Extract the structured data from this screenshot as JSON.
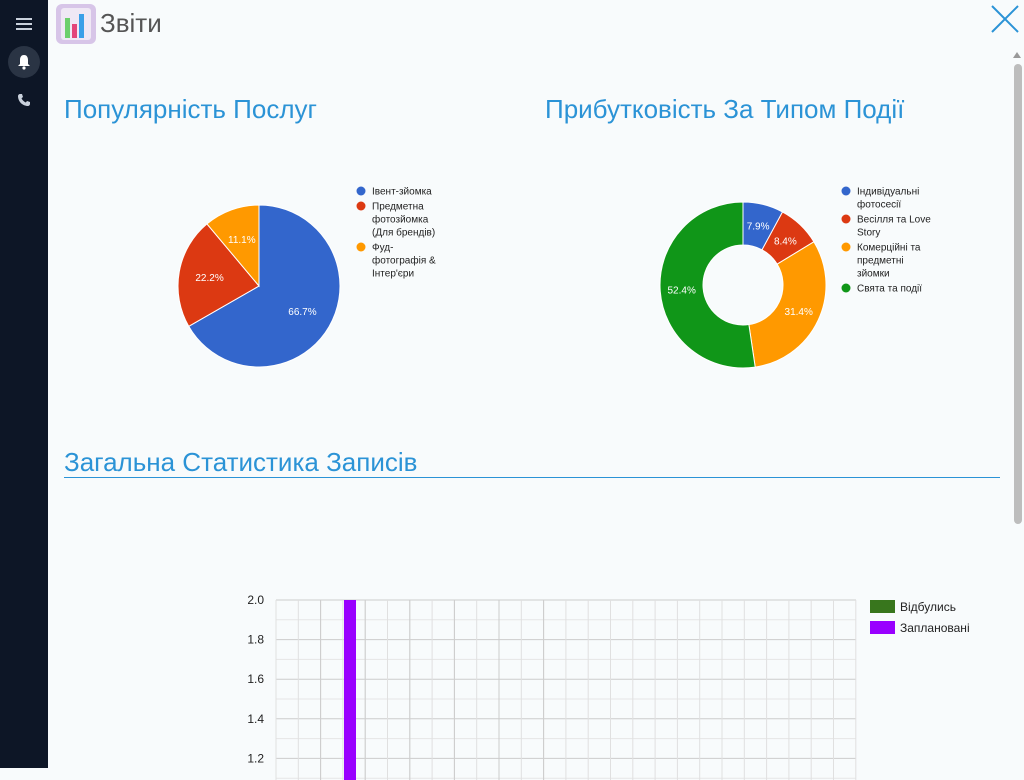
{
  "header": {
    "title": "Звіти"
  },
  "sidebar": {
    "items": [
      {
        "icon": "menu-icon"
      },
      {
        "icon": "bell-icon"
      },
      {
        "icon": "phone-icon"
      }
    ]
  },
  "sections": {
    "popularity_title": "Популярність Послуг",
    "profitability_title": "Прибутковість За Типом Події",
    "stats_title": "Загальна Статистика Записів"
  },
  "chart_data": [
    {
      "type": "pie",
      "title": "Популярність Послуг",
      "slices": [
        {
          "label": "Івент-зйомка",
          "value": 66.7,
          "color": "#3366cc",
          "display": "66.7%"
        },
        {
          "label": "Предметна фотозйомка (Для брендів)",
          "value": 22.2,
          "color": "#dc3912",
          "display": "22.2%"
        },
        {
          "label": "Фуд-фотографія & Інтер'єри",
          "value": 11.1,
          "color": "#ff9900",
          "display": "11.1%"
        }
      ],
      "legend": [
        {
          "lines": [
            "Івент-зйомка"
          ],
          "color": "#3366cc"
        },
        {
          "lines": [
            "Предметна",
            "фотозйомка",
            "(Для брендів)"
          ],
          "color": "#dc3912"
        },
        {
          "lines": [
            "Фуд-",
            "фотографія &",
            "Інтер'єри"
          ],
          "color": "#ff9900"
        }
      ],
      "legend_position": "right"
    },
    {
      "type": "pie",
      "donut": true,
      "title": "Прибутковість За Типом Події",
      "slices": [
        {
          "label": "Індивідуальні фотосесії",
          "value": 7.9,
          "color": "#3366cc",
          "display": "7.9%"
        },
        {
          "label": "Весілля та Love Story",
          "value": 8.4,
          "color": "#dc3912",
          "display": "8.4%"
        },
        {
          "label": "Комерційні та предметні зйомки",
          "value": 31.4,
          "color": "#ff9900",
          "display": "31.4%"
        },
        {
          "label": "Свята та події",
          "value": 52.4,
          "color": "#109618",
          "display": "52.4%"
        }
      ],
      "legend": [
        {
          "lines": [
            "Індивідуальні",
            "фотосесії"
          ],
          "color": "#3366cc"
        },
        {
          "lines": [
            "Весілля та Love",
            "Story"
          ],
          "color": "#dc3912"
        },
        {
          "lines": [
            "Комерційні та",
            "предметні",
            "зйомки"
          ],
          "color": "#ff9900"
        },
        {
          "lines": [
            "Свята та події"
          ],
          "color": "#109618"
        }
      ],
      "legend_position": "right"
    },
    {
      "type": "bar",
      "title": "Загальна Статистика Записів",
      "y_ticks": [
        "2.0",
        "1.8",
        "1.6",
        "1.4",
        "1.2"
      ],
      "ylim_visible": [
        1.2,
        2.0
      ],
      "series": [
        {
          "name": "Відбулись",
          "color": "#38761d",
          "values": [
            0
          ]
        },
        {
          "name": "Заплановані",
          "color": "#9900ff",
          "values": [
            2
          ]
        }
      ],
      "grid": true,
      "legend_position": "right"
    }
  ]
}
